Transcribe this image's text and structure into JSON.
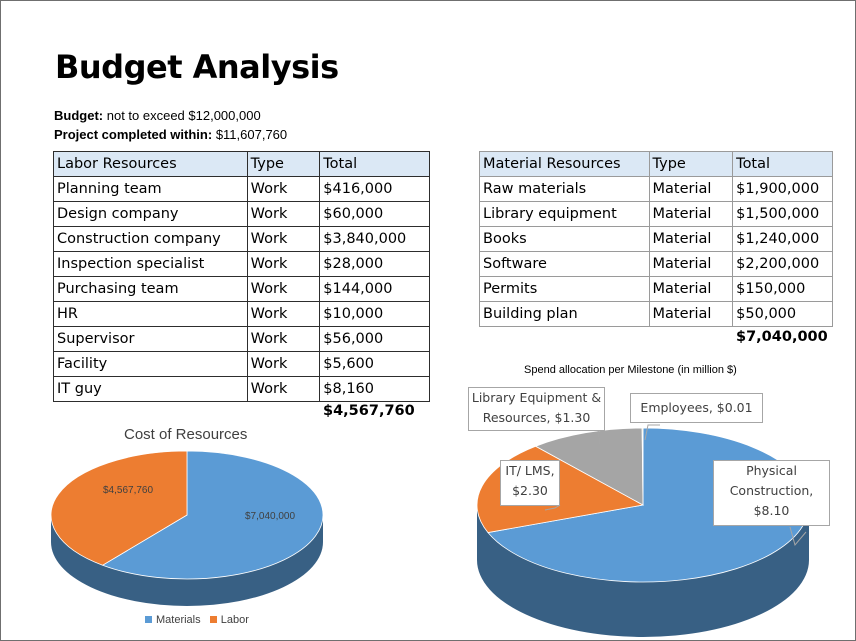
{
  "page": {
    "title": "Budget Analysis",
    "budget_label": "Budget:",
    "budget_value": "not to exceed $12,000,000",
    "completed_label": "Project completed within:",
    "completed_value": "$11,607,760"
  },
  "labor": {
    "headers": [
      "Labor Resources",
      "Type",
      "Total"
    ],
    "rows": [
      [
        "Planning team",
        "Work",
        "$416,000"
      ],
      [
        "Design company",
        "Work",
        "$60,000"
      ],
      [
        "Construction company",
        "Work",
        "$3,840,000"
      ],
      [
        "Inspection specialist",
        "Work",
        "$28,000"
      ],
      [
        "Purchasing team",
        "Work",
        "$144,000"
      ],
      [
        "HR",
        "Work",
        "$10,000"
      ],
      [
        "Supervisor",
        "Work",
        "$56,000"
      ],
      [
        "Facility",
        "Work",
        "$5,600"
      ],
      [
        "IT guy",
        "Work",
        "$8,160"
      ]
    ],
    "total": "$4,567,760"
  },
  "materials": {
    "headers": [
      "Material Resources",
      "Type",
      "Total"
    ],
    "rows": [
      [
        "Raw materials",
        "Material",
        "$1,900,000"
      ],
      [
        "Library equipment",
        "Material",
        "$1,500,000"
      ],
      [
        "Books",
        "Material",
        "$1,240,000"
      ],
      [
        "Software",
        "Material",
        "$2,200,000"
      ],
      [
        "Permits",
        "Material",
        "$150,000"
      ],
      [
        "Building plan",
        "Material",
        "$50,000"
      ]
    ],
    "total": "$7,040,000"
  },
  "chart_data": [
    {
      "type": "pie",
      "title": "Cost of Resources",
      "labels": [
        "Materials",
        "Labor"
      ],
      "values": [
        7040000,
        4567760
      ],
      "data_labels": [
        "$7,040,000",
        "$4,567,760"
      ],
      "colors": [
        "#5b9bd5",
        "#ed7d31"
      ],
      "legend": "bottom"
    },
    {
      "type": "pie",
      "title": "Spend allocation per Milestone (in million $)",
      "labels": [
        "Physical Construction",
        "IT/ LMS",
        "Library Equipment & Resources",
        "Employees"
      ],
      "values": [
        8.1,
        2.3,
        1.3,
        0.01
      ],
      "data_labels": [
        "Physical Construction, $8.10",
        "IT/ LMS, $2.30",
        "Library Equipment & Resources, $1.30",
        "Employees, $0.01"
      ],
      "colors": [
        "#5b9bd5",
        "#ed7d31",
        "#a5a5a5",
        "#ffc000"
      ],
      "legend": "none"
    }
  ]
}
